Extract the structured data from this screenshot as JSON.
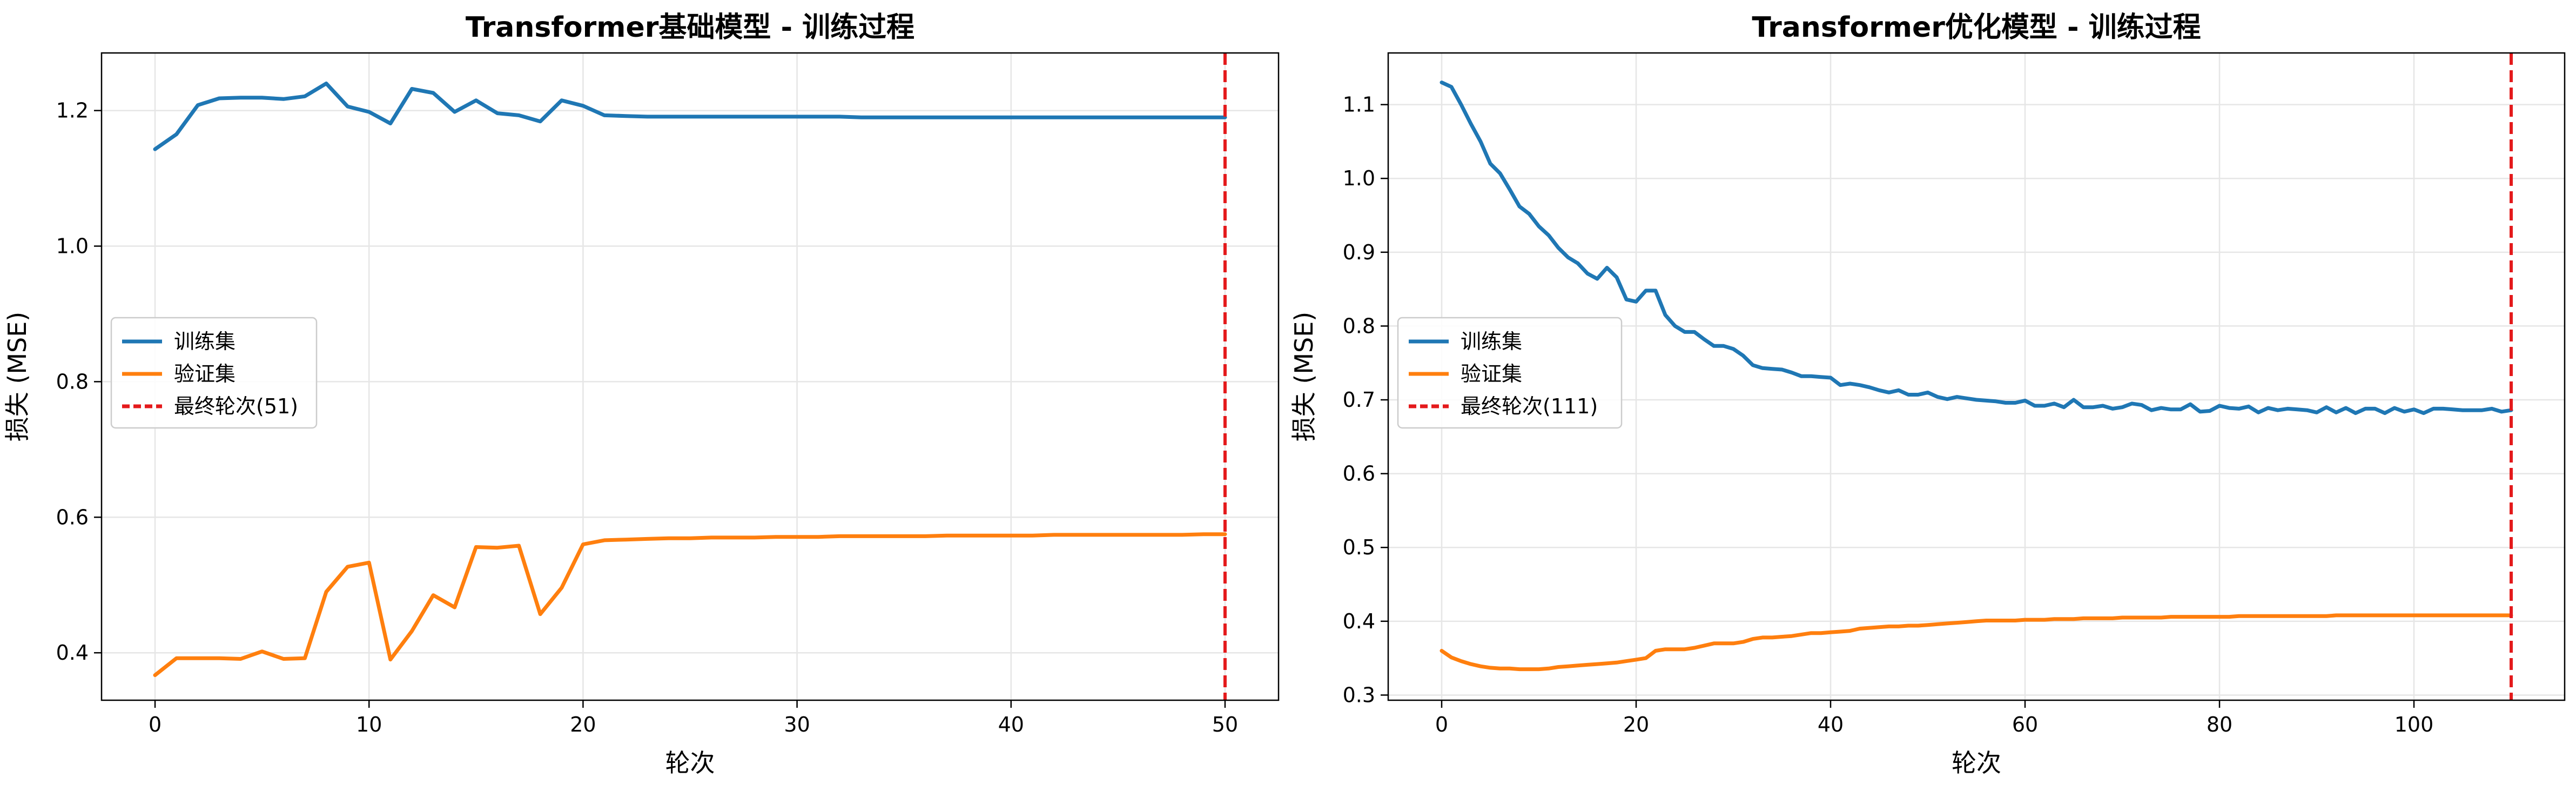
{
  "chart_data": [
    {
      "type": "line",
      "title": "Transformer基础模型 - 训练过程",
      "xlabel": "轮次",
      "ylabel": "损失 (MSE)",
      "xlim": [
        -2.5,
        52.5
      ],
      "ylim": [
        0.33,
        1.285
      ],
      "xticks": [
        0,
        10,
        20,
        30,
        40,
        50
      ],
      "yticks": [
        0.4,
        0.6,
        0.8,
        1.0,
        1.2
      ],
      "grid": true,
      "legend_position": "center-left",
      "series": [
        {
          "name": "训练集",
          "color": "#1f77b4",
          "values": [
            1.143,
            1.165,
            1.208,
            1.218,
            1.219,
            1.219,
            1.217,
            1.221,
            1.24,
            1.206,
            1.198,
            1.181,
            1.232,
            1.226,
            1.198,
            1.215,
            1.196,
            1.193,
            1.184,
            1.215,
            1.207,
            1.193,
            1.192,
            1.191,
            1.191,
            1.191,
            1.191,
            1.191,
            1.191,
            1.191,
            1.191,
            1.191,
            1.191,
            1.19,
            1.19,
            1.19,
            1.19,
            1.19,
            1.19,
            1.19,
            1.19,
            1.19,
            1.19,
            1.19,
            1.19,
            1.19,
            1.19,
            1.19,
            1.19,
            1.19,
            1.19
          ]
        },
        {
          "name": "验证集",
          "color": "#ff7f0e",
          "values": [
            0.367,
            0.392,
            0.392,
            0.392,
            0.391,
            0.402,
            0.391,
            0.392,
            0.49,
            0.527,
            0.533,
            0.39,
            0.432,
            0.485,
            0.467,
            0.556,
            0.555,
            0.558,
            0.457,
            0.496,
            0.56,
            0.566,
            0.567,
            0.568,
            0.569,
            0.569,
            0.57,
            0.57,
            0.57,
            0.571,
            0.571,
            0.571,
            0.572,
            0.572,
            0.572,
            0.572,
            0.572,
            0.573,
            0.573,
            0.573,
            0.573,
            0.573,
            0.574,
            0.574,
            0.574,
            0.574,
            0.574,
            0.574,
            0.574,
            0.575,
            0.575
          ]
        }
      ],
      "vline": {
        "x": 50,
        "label": "最终轮次(51)",
        "color": "#e41a1c"
      }
    },
    {
      "type": "line",
      "title": "Transformer优化模型 - 训练过程",
      "xlabel": "轮次",
      "ylabel": "损失 (MSE)",
      "xlim": [
        -5.5,
        115.5
      ],
      "ylim": [
        0.293,
        1.17
      ],
      "xticks": [
        0,
        20,
        40,
        60,
        80,
        100
      ],
      "yticks": [
        0.3,
        0.4,
        0.5,
        0.6,
        0.7,
        0.8,
        0.9,
        1.0,
        1.1
      ],
      "grid": true,
      "legend_position": "center-left",
      "series": [
        {
          "name": "训练集",
          "color": "#1f77b4",
          "values": [
            1.13,
            1.124,
            1.1,
            1.074,
            1.05,
            1.02,
            1.007,
            0.985,
            0.962,
            0.952,
            0.935,
            0.923,
            0.906,
            0.893,
            0.885,
            0.871,
            0.864,
            0.879,
            0.866,
            0.836,
            0.833,
            0.848,
            0.848,
            0.815,
            0.8,
            0.792,
            0.792,
            0.782,
            0.773,
            0.773,
            0.769,
            0.76,
            0.747,
            0.743,
            0.742,
            0.741,
            0.737,
            0.732,
            0.732,
            0.731,
            0.73,
            0.72,
            0.722,
            0.72,
            0.717,
            0.713,
            0.71,
            0.713,
            0.707,
            0.707,
            0.71,
            0.704,
            0.701,
            0.704,
            0.702,
            0.7,
            0.699,
            0.698,
            0.696,
            0.696,
            0.699,
            0.692,
            0.692,
            0.695,
            0.69,
            0.7,
            0.69,
            0.69,
            0.692,
            0.688,
            0.69,
            0.695,
            0.693,
            0.686,
            0.689,
            0.687,
            0.687,
            0.694,
            0.684,
            0.685,
            0.692,
            0.689,
            0.688,
            0.691,
            0.683,
            0.689,
            0.686,
            0.688,
            0.687,
            0.686,
            0.683,
            0.69,
            0.683,
            0.689,
            0.682,
            0.688,
            0.688,
            0.682,
            0.689,
            0.684,
            0.687,
            0.682,
            0.688,
            0.688,
            0.687,
            0.686,
            0.686,
            0.686,
            0.688,
            0.684,
            0.686
          ]
        },
        {
          "name": "验证集",
          "color": "#ff7f0e",
          "values": [
            0.36,
            0.351,
            0.346,
            0.342,
            0.339,
            0.337,
            0.336,
            0.336,
            0.335,
            0.335,
            0.335,
            0.336,
            0.338,
            0.339,
            0.34,
            0.341,
            0.342,
            0.343,
            0.344,
            0.346,
            0.348,
            0.35,
            0.36,
            0.362,
            0.362,
            0.362,
            0.364,
            0.367,
            0.37,
            0.37,
            0.37,
            0.372,
            0.376,
            0.378,
            0.378,
            0.379,
            0.38,
            0.382,
            0.384,
            0.384,
            0.385,
            0.386,
            0.387,
            0.39,
            0.391,
            0.392,
            0.393,
            0.393,
            0.394,
            0.394,
            0.395,
            0.396,
            0.397,
            0.398,
            0.399,
            0.4,
            0.401,
            0.401,
            0.401,
            0.401,
            0.402,
            0.402,
            0.402,
            0.403,
            0.403,
            0.403,
            0.404,
            0.404,
            0.404,
            0.404,
            0.405,
            0.405,
            0.405,
            0.405,
            0.405,
            0.406,
            0.406,
            0.406,
            0.406,
            0.406,
            0.406,
            0.406,
            0.407,
            0.407,
            0.407,
            0.407,
            0.407,
            0.407,
            0.407,
            0.407,
            0.407,
            0.407,
            0.408,
            0.408,
            0.408,
            0.408,
            0.408,
            0.408,
            0.408,
            0.408,
            0.408,
            0.408,
            0.408,
            0.408,
            0.408,
            0.408,
            0.408,
            0.408,
            0.408,
            0.408,
            0.408
          ]
        }
      ],
      "vline": {
        "x": 110,
        "label": "最终轮次(111)",
        "color": "#e41a1c"
      }
    }
  ]
}
